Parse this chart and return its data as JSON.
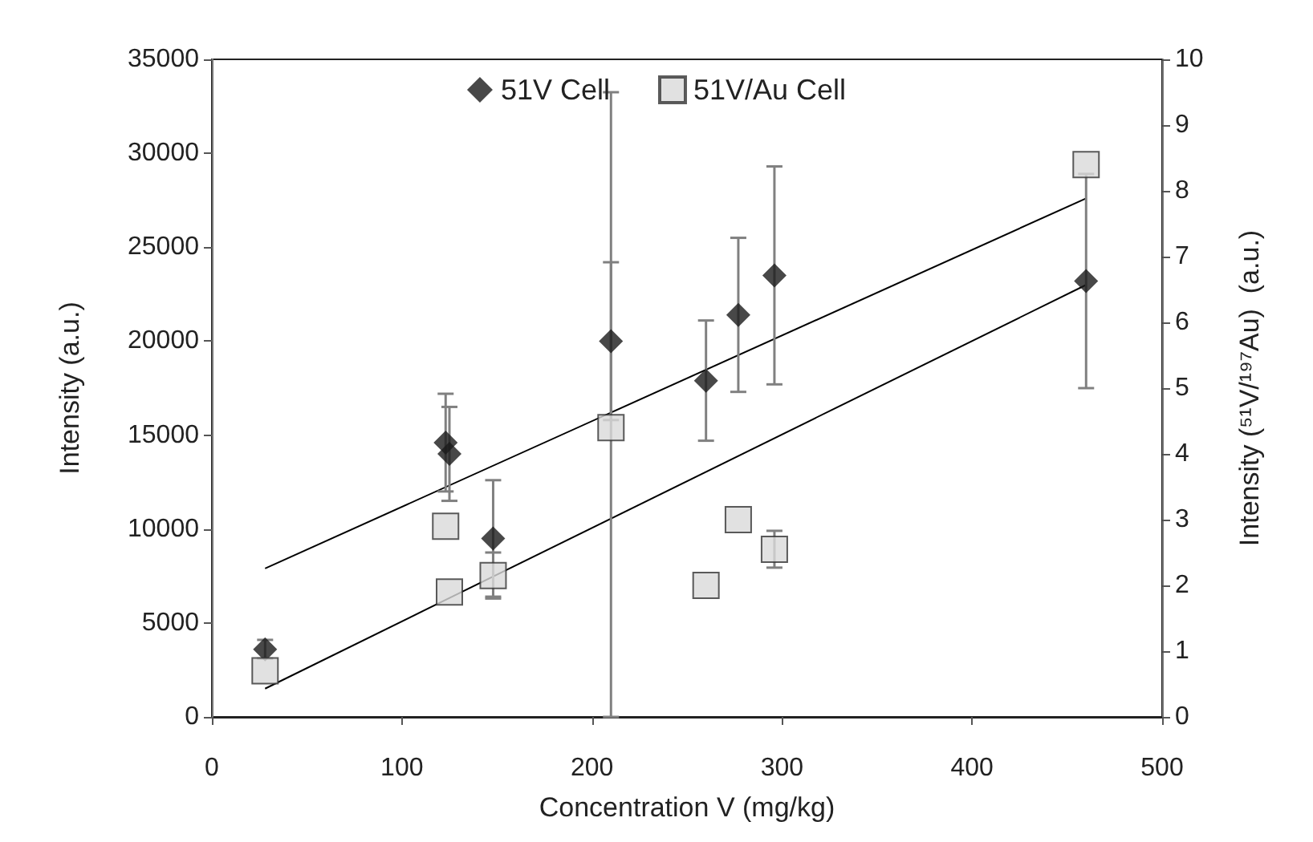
{
  "chart_data": {
    "type": "scatter",
    "xlabel": "Concentration V (mg/kg)",
    "ylabel": "Intensity (a.u.)",
    "y2label": "Intensity (⁵¹V/¹⁹⁷Au)  (a.u.)",
    "xlim": [
      0,
      500
    ],
    "xticks": [
      0,
      100,
      200,
      300,
      400,
      500
    ],
    "ylim": [
      0,
      35000
    ],
    "yticks": [
      0,
      5000,
      10000,
      15000,
      20000,
      25000,
      30000,
      35000
    ],
    "y2lim": [
      0,
      10
    ],
    "y2ticks": [
      0,
      1,
      2,
      3,
      4,
      5,
      6,
      7,
      8,
      9,
      10
    ],
    "grid": false,
    "legend": "top",
    "line_style": "solid",
    "series": [
      {
        "name": "51V Cell",
        "marker": "diamond",
        "color": "#1a1a1a",
        "x": [
          28,
          123,
          125,
          148,
          210,
          260,
          277,
          296,
          460
        ],
        "values": [
          3600,
          14600,
          14000,
          9500,
          20000,
          17900,
          21400,
          23500,
          23200
        ],
        "errors": [
          500,
          2600,
          2500,
          3100,
          4200,
          3200,
          4100,
          5800,
          5700
        ]
      },
      {
        "name": "51V/Au Cell",
        "marker": "square",
        "color": "#d9d9d9",
        "axis": "y2",
        "x": [
          28,
          123,
          125,
          148,
          210,
          260,
          277,
          296,
          460
        ],
        "values": [
          0.7,
          2.9,
          1.9,
          2.15,
          4.4,
          2.0,
          3.0,
          2.55,
          8.4
        ],
        "errors": [
          null,
          null,
          null,
          0.35,
          [
            0,
            9.5
          ],
          null,
          null,
          0.28,
          null
        ]
      },
      {
        "type": "line",
        "marker": "none",
        "color": "#000000",
        "x": [
          28,
          460
        ],
        "values": [
          7900,
          27600
        ]
      },
      {
        "type": "line",
        "marker": "none",
        "color": "#000000",
        "axis": "y2",
        "x": [
          28,
          460
        ],
        "values": [
          0.43,
          6.57
        ]
      }
    ]
  }
}
